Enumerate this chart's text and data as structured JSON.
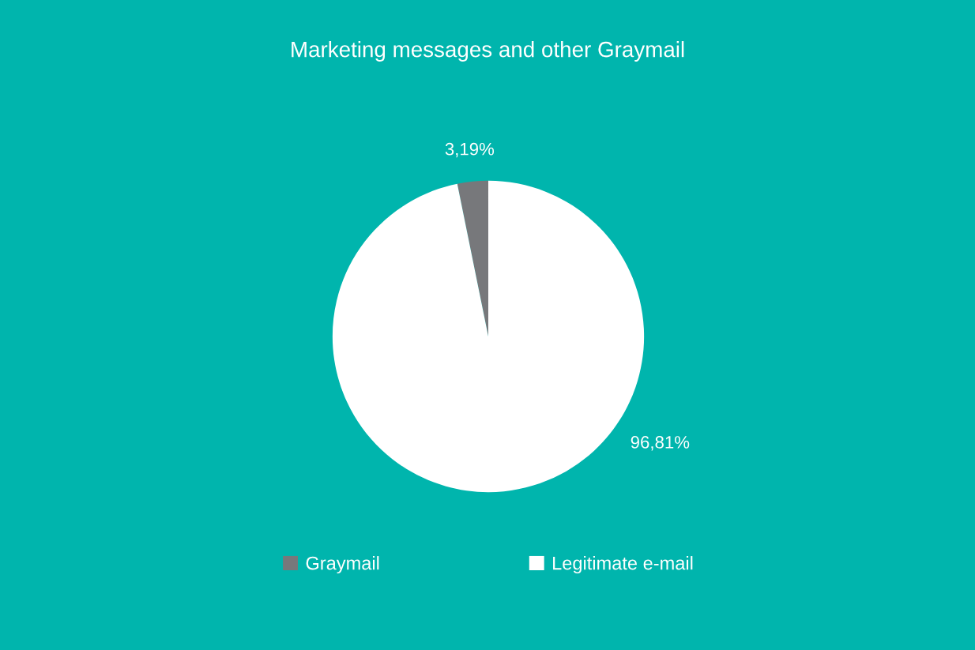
{
  "chart_data": {
    "type": "pie",
    "title": "Marketing messages and other Graymail",
    "categories": [
      "Graymail",
      "Legitimate e-mail"
    ],
    "values": [
      3.19,
      96.81
    ],
    "colors": [
      "#77787b",
      "#ffffff"
    ],
    "value_labels": [
      "3,19%",
      "96,81%"
    ],
    "legend": "bottom"
  }
}
